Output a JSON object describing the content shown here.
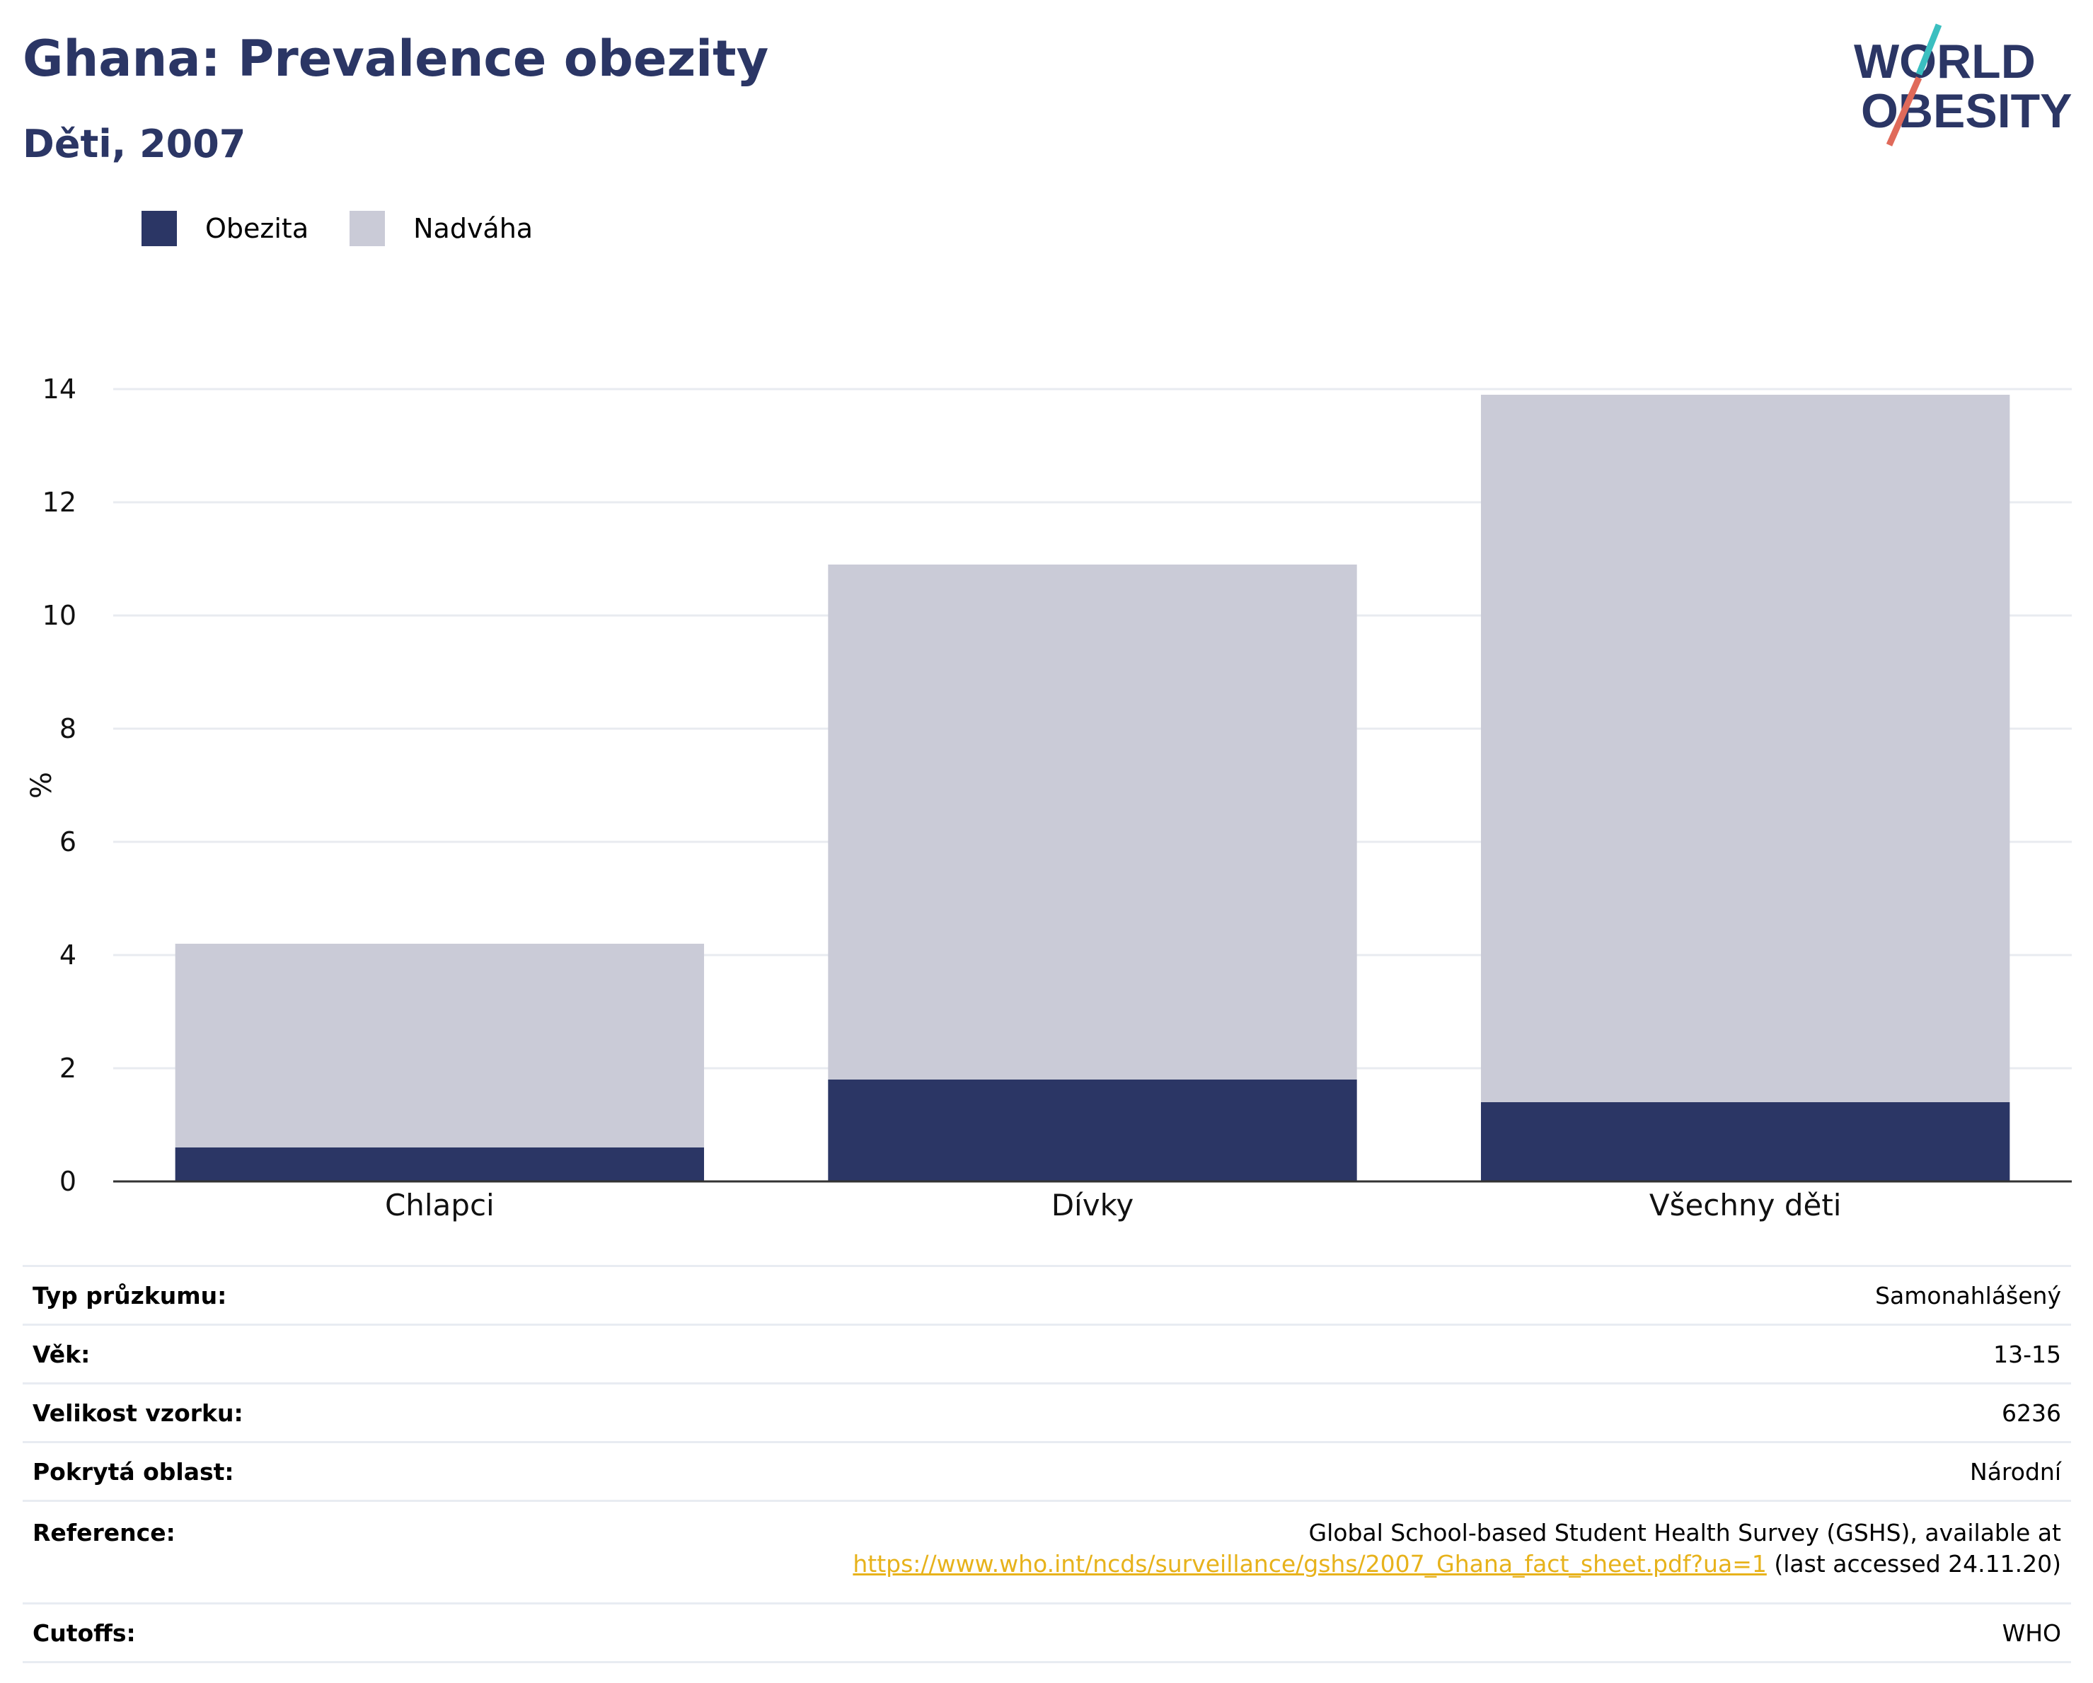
{
  "header": {
    "title": "Ghana: Prevalence obezity",
    "subtitle": "Děti, 2007"
  },
  "logo": {
    "line1": "WORLD",
    "line2": "OBESITY"
  },
  "colors": {
    "obesity": "#2b3665",
    "overweight": "#cacbd7",
    "accent_teal": "#3bbfc0",
    "accent_red": "#e06a5a",
    "link": "#e7b21b"
  },
  "chart_data": {
    "type": "bar",
    "stacked": true,
    "categories": [
      "Chlapci",
      "Dívky",
      "Všechny děti"
    ],
    "series": [
      {
        "name": "Obezita",
        "values": [
          0.6,
          1.8,
          1.4
        ]
      },
      {
        "name": "Nadváha",
        "values": [
          3.6,
          9.1,
          12.5
        ]
      }
    ],
    "ylabel": "%",
    "ylim": [
      0,
      14
    ],
    "yticks": [
      "0",
      "2",
      "4",
      "6",
      "8",
      "10",
      "12",
      "14"
    ],
    "grid": true,
    "legend": "top-left"
  },
  "info": {
    "rows": [
      {
        "key": "Typ průzkumu:",
        "value": "Samonahlášený"
      },
      {
        "key": "Věk:",
        "value": "13-15"
      },
      {
        "key": "Velikost vzorku:",
        "value": "6236"
      },
      {
        "key": "Pokrytá oblast:",
        "value": "Národní"
      }
    ],
    "reference": {
      "key": "Reference:",
      "text": "Global School-based Student Health Survey (GSHS), available at",
      "link": "https://www.who.int/ncds/surveillance/gshs/2007_Ghana_fact_sheet.pdf?ua=1",
      "suffix": " (last accessed 24.11.20)"
    },
    "cutoffs": {
      "key": "Cutoffs:",
      "value": "WHO"
    }
  }
}
